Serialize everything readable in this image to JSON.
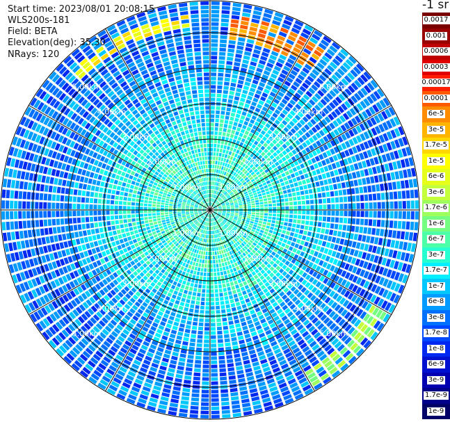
{
  "header": {
    "start_time": "Start time: 2023/08/01 20:08:15",
    "instrument": "WLS200s-181",
    "field": "Field: BETA",
    "elevation": "Elevation(deg): 35.30",
    "nrays": "NRays: 120"
  },
  "colorbar": {
    "unit": "-1 sr",
    "bins": [
      {
        "label": "0.0017",
        "color": "#7a0000"
      },
      {
        "label": "0.001",
        "color": "#990000"
      },
      {
        "label": "0.0006",
        "color": "#c00000"
      },
      {
        "label": "0.0003",
        "color": "#e00000"
      },
      {
        "label": "0.00017",
        "color": "#ff1e00"
      },
      {
        "label": "0.0001",
        "color": "#ff5a00"
      },
      {
        "label": "6e-5",
        "color": "#ff8c00"
      },
      {
        "label": "3e-5",
        "color": "#ffb400"
      },
      {
        "label": "1.7e-5",
        "color": "#ffd700"
      },
      {
        "label": "1e-5",
        "color": "#ffff00"
      },
      {
        "label": "6e-6",
        "color": "#e6ff1a"
      },
      {
        "label": "3e-6",
        "color": "#c3ff3a"
      },
      {
        "label": "1.7e-6",
        "color": "#9cff5e"
      },
      {
        "label": "1e-6",
        "color": "#75ff82"
      },
      {
        "label": "6e-7",
        "color": "#4dffa6"
      },
      {
        "label": "3e-7",
        "color": "#26ffd0"
      },
      {
        "label": "1.7e-7",
        "color": "#00f0ff"
      },
      {
        "label": "1e-7",
        "color": "#00c8ff"
      },
      {
        "label": "6e-8",
        "color": "#009bff"
      },
      {
        "label": "3e-8",
        "color": "#0070ff"
      },
      {
        "label": "1.7e-8",
        "color": "#0048ff"
      },
      {
        "label": "1e-8",
        "color": "#0028f0"
      },
      {
        "label": "6e-9",
        "color": "#0010d0"
      },
      {
        "label": "3e-9",
        "color": "#0000b0"
      },
      {
        "label": "1.7e-9",
        "color": "#00008a"
      },
      {
        "label": "1e-9",
        "color": "#000066"
      }
    ]
  },
  "chart_data": {
    "type": "heatmap",
    "projection": "polar-ppi",
    "field": "BETA",
    "n_rays": 120,
    "max_range_km": 5.9,
    "range_rings_km": [
      1,
      2,
      3,
      4,
      5
    ],
    "ring_labels": [
      {
        "text": "1.00km",
        "range_km": 1
      },
      {
        "text": "2.00km",
        "range_km": 2
      },
      {
        "text": "3.00km",
        "range_km": 3
      },
      {
        "text": "4.00km",
        "range_km": 4
      },
      {
        "text": "5.00km",
        "range_km": 5
      }
    ],
    "spoke_angles_deg": [
      0,
      30,
      60,
      90,
      120,
      150,
      180,
      210,
      240,
      270,
      300,
      330
    ],
    "label_azimuths_deg": [
      45,
      135,
      225,
      315
    ],
    "background_level": "3e-8",
    "features": [
      {
        "description": "enhanced backscatter arc",
        "azimuth_from_deg": 315,
        "azimuth_to_deg": 355,
        "range_km": [
          5.15,
          5.55
        ],
        "level": "1e-5"
      },
      {
        "description": "enhanced backscatter arc",
        "azimuth_from_deg": 5,
        "azimuth_to_deg": 35,
        "range_km": [
          4.8,
          5.5
        ],
        "level": "6e-5"
      },
      {
        "description": "weak enhancement",
        "azimuth_from_deg": 120,
        "azimuth_to_deg": 150,
        "range_km": [
          5.3,
          5.8
        ],
        "level": "1.7e-6"
      }
    ]
  }
}
